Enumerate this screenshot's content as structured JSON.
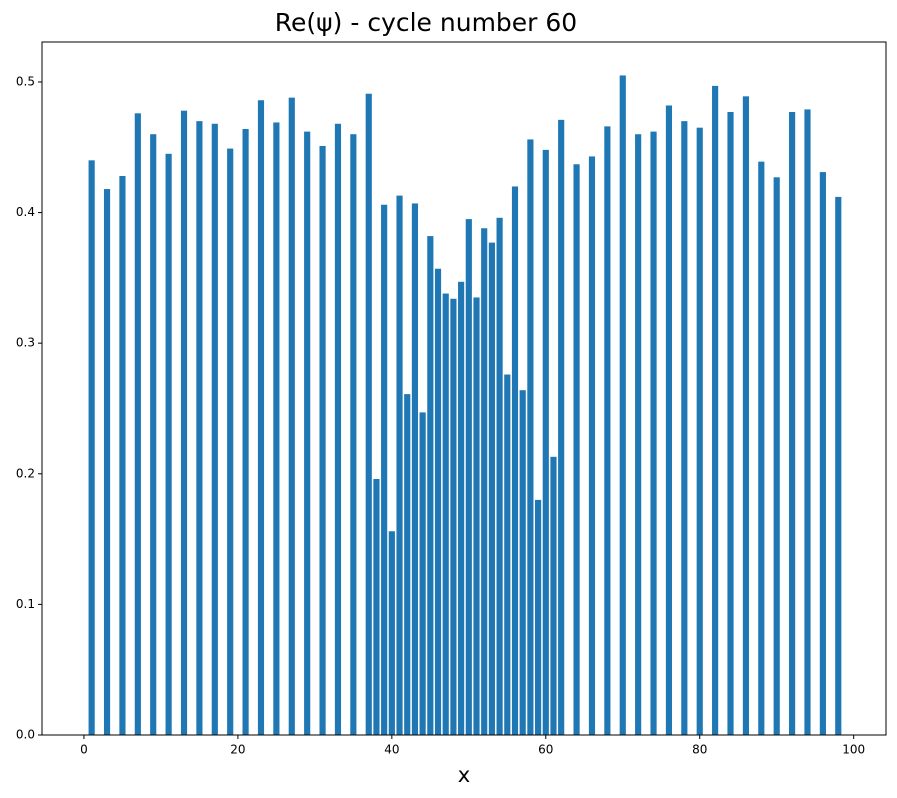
{
  "chart_data": {
    "type": "bar",
    "title": "Re(ψ) - cycle number 60",
    "xlabel": "x",
    "color": "#1f77b4",
    "x": [
      1,
      3,
      5,
      7,
      9,
      11,
      13,
      15,
      17,
      19,
      21,
      23,
      25,
      27,
      29,
      31,
      33,
      35,
      37,
      38,
      39,
      40,
      41,
      42,
      43,
      44,
      45,
      46,
      47,
      48,
      49,
      50,
      51,
      52,
      53,
      54,
      55,
      56,
      57,
      58,
      59,
      60,
      61,
      62,
      64,
      66,
      68,
      70,
      72,
      74,
      76,
      78,
      80,
      82,
      84,
      86,
      88,
      90,
      92,
      94,
      96,
      98
    ],
    "values": [
      0.44,
      0.418,
      0.428,
      0.476,
      0.46,
      0.445,
      0.478,
      0.47,
      0.468,
      0.449,
      0.464,
      0.486,
      0.469,
      0.488,
      0.462,
      0.451,
      0.468,
      0.46,
      0.491,
      0.196,
      0.406,
      0.156,
      0.413,
      0.261,
      0.407,
      0.247,
      0.382,
      0.357,
      0.338,
      0.334,
      0.347,
      0.395,
      0.335,
      0.388,
      0.377,
      0.396,
      0.276,
      0.42,
      0.264,
      0.456,
      0.18,
      0.448,
      0.213,
      0.471,
      0.437,
      0.443,
      0.466,
      0.505,
      0.46,
      0.462,
      0.482,
      0.47,
      0.465,
      0.497,
      0.477,
      0.489,
      0.439,
      0.427,
      0.477,
      0.479,
      0.431,
      0.412
    ],
    "xlim": [
      -5.45,
      104.2
    ],
    "ylim": [
      0,
      0.5306
    ],
    "xticks": [
      0,
      20,
      40,
      60,
      80,
      100
    ],
    "yticks": [
      {
        "value": 0,
        "label": "0.0"
      },
      {
        "value": 0.1,
        "label": "0.1"
      },
      {
        "value": 0.2,
        "label": "0.2"
      },
      {
        "value": 0.3,
        "label": "0.3"
      },
      {
        "value": 0.4,
        "label": "0.4"
      },
      {
        "value": 0.5,
        "label": "0.5"
      }
    ]
  }
}
